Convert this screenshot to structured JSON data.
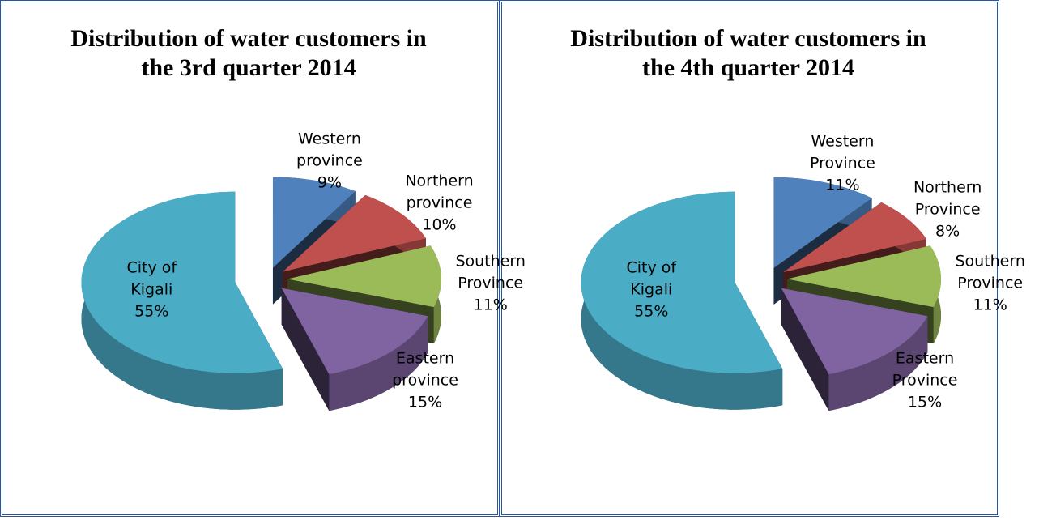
{
  "chart_data": [
    {
      "type": "pie",
      "title": "Distribution of water customers in the 3rd quarter 2014",
      "categories": [
        "Western province",
        "Northern province",
        "Southern Province",
        "Eastern province",
        "City of Kigali"
      ],
      "values": [
        9,
        10,
        11,
        15,
        55
      ],
      "value_labels": [
        "9%",
        "10%",
        "11%",
        "15%",
        "55%"
      ],
      "colors": [
        "#4f81bd",
        "#c0504d",
        "#9bbb59",
        "#8064a2",
        "#4bacc6"
      ]
    },
    {
      "type": "pie",
      "title": "Distribution of water customers in the 4th quarter 2014",
      "categories": [
        "Western Province",
        "Northern Province",
        "Southern Province",
        "Eastern Province",
        "City of Kigali"
      ],
      "values": [
        11,
        8,
        11,
        15,
        55
      ],
      "value_labels": [
        "11%",
        "8%",
        "11%",
        "15%",
        "55%"
      ],
      "colors": [
        "#4f81bd",
        "#c0504d",
        "#9bbb59",
        "#8064a2",
        "#4bacc6"
      ]
    }
  ]
}
